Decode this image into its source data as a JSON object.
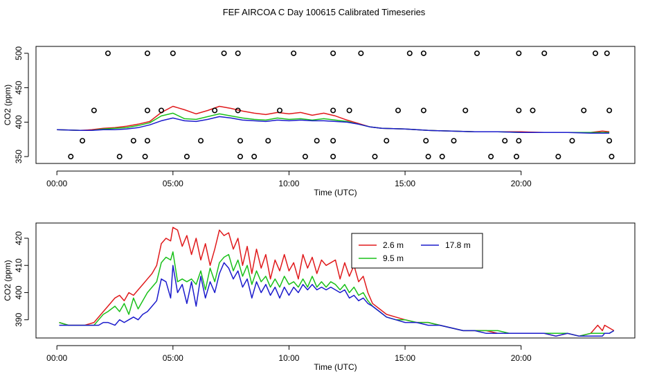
{
  "figure": {
    "title": "FEF AIRCOA C  Day 100615  Calibrated Timeseries"
  },
  "colors": {
    "red": "#e0191b",
    "green": "#19c019",
    "blue": "#1a1acc",
    "markers": "#000000"
  },
  "chart_data": [
    {
      "type": "line",
      "panel": "top",
      "title": "",
      "xlabel": "Time (UTC)",
      "ylabel": "CO2 (ppm)",
      "xlim": [
        -0.9,
        24.9
      ],
      "ylim": [
        340,
        510
      ],
      "xticks": [
        0,
        5,
        10,
        15,
        20
      ],
      "xtick_labels": [
        "00:00",
        "05:00",
        "10:00",
        "15:00",
        "20:00"
      ],
      "yticks": [
        350,
        400,
        450,
        500
      ],
      "ytick_labels": [
        "350",
        "400",
        "450",
        "500"
      ],
      "grid": false,
      "series": [
        {
          "name": "2.6 m",
          "color": "red",
          "x": [
            0,
            1,
            1.5,
            2,
            2.5,
            3,
            3.5,
            4,
            4.5,
            5,
            5.5,
            6,
            6.5,
            7,
            7.5,
            8,
            8.5,
            9,
            9.5,
            10,
            10.5,
            11,
            11.5,
            12,
            12.5,
            13,
            13.5,
            14,
            15,
            16,
            17,
            18,
            19,
            20,
            21,
            22,
            23,
            23.5,
            23.8
          ],
          "y": [
            389,
            388,
            389,
            391,
            392,
            394,
            397,
            401,
            414,
            423,
            418,
            412,
            417,
            423,
            420,
            416,
            413,
            411,
            414,
            412,
            414,
            410,
            413,
            409,
            403,
            398,
            393,
            391,
            390,
            388,
            387,
            386,
            386,
            386,
            385,
            385,
            385,
            387,
            386
          ]
        },
        {
          "name": "9.5 m",
          "color": "green",
          "x": [
            0,
            1,
            1.5,
            2,
            2.5,
            3,
            3.5,
            4,
            4.5,
            5,
            5.5,
            6,
            6.5,
            7,
            7.5,
            8,
            8.5,
            9,
            9.5,
            10,
            10.5,
            11,
            11.5,
            12,
            12.5,
            13,
            13.5,
            14,
            15,
            16,
            17,
            18,
            19,
            20,
            21,
            22,
            23,
            23.8
          ],
          "y": [
            389,
            388,
            388,
            390,
            391,
            392,
            395,
            399,
            409,
            413,
            405,
            404,
            408,
            412,
            409,
            406,
            404,
            403,
            406,
            404,
            405,
            403,
            405,
            403,
            401,
            397,
            393,
            391,
            390,
            388,
            387,
            386,
            386,
            385,
            385,
            385,
            385,
            385
          ]
        },
        {
          "name": "17.8 m",
          "color": "blue",
          "x": [
            0,
            1,
            1.5,
            2,
            2.5,
            3,
            3.5,
            4,
            4.5,
            5,
            5.5,
            6,
            6.5,
            7,
            7.5,
            8,
            8.5,
            9,
            9.5,
            10,
            10.5,
            11,
            11.5,
            12,
            12.5,
            13,
            13.5,
            14,
            15,
            16,
            17,
            18,
            19,
            20,
            21,
            22,
            23,
            23.8
          ],
          "y": [
            389,
            388,
            388,
            389,
            389,
            390,
            392,
            396,
            402,
            406,
            402,
            401,
            404,
            408,
            406,
            403,
            402,
            401,
            403,
            402,
            403,
            402,
            402,
            401,
            400,
            397,
            393,
            391,
            390,
            388,
            387,
            386,
            386,
            385,
            385,
            385,
            384,
            384
          ]
        },
        {
          "name": "markers",
          "color": "markers",
          "marker": "circle",
          "x": [
            2.2,
            3.9,
            5.0,
            7.2,
            7.8,
            10.2,
            11.9,
            13.1,
            15.2,
            15.8,
            18.1,
            19.9,
            21.0,
            23.2,
            23.7,
            1.6,
            3.9,
            4.5,
            6.8,
            7.8,
            9.6,
            11.9,
            12.6,
            14.7,
            15.8,
            17.6,
            19.9,
            20.5,
            22.7,
            23.8,
            1.1,
            3.3,
            3.9,
            6.2,
            7.9,
            9.1,
            11.2,
            11.9,
            14.2,
            15.9,
            17.1,
            19.3,
            19.9,
            22.2,
            23.8,
            0.6,
            2.7,
            3.8,
            5.6,
            7.9,
            8.5,
            10.7,
            11.9,
            13.7,
            16.0,
            16.6,
            18.7,
            19.8,
            21.6,
            23.9
          ],
          "y": [
            500,
            500,
            500,
            500,
            500,
            500,
            500,
            500,
            500,
            500,
            500,
            500,
            500,
            500,
            500,
            417,
            417,
            417,
            417,
            417,
            417,
            417,
            417,
            417,
            417,
            417,
            417,
            417,
            417,
            417,
            373,
            373,
            373,
            373,
            373,
            373,
            373,
            373,
            373,
            373,
            373,
            373,
            373,
            373,
            373,
            350,
            350,
            350,
            350,
            350,
            350,
            350,
            350,
            350,
            350,
            350,
            350,
            350,
            350,
            350
          ]
        }
      ]
    },
    {
      "type": "line",
      "panel": "bottom",
      "title": "",
      "xlabel": "Time (UTC)",
      "ylabel": "CO2 (ppm)",
      "xlim": [
        -0.9,
        24.9
      ],
      "ylim": [
        383.3,
        425.6
      ],
      "xticks": [
        0,
        5,
        10,
        15,
        20
      ],
      "xtick_labels": [
        "00:00",
        "05:00",
        "10:00",
        "15:00",
        "20:00"
      ],
      "yticks": [
        390,
        400,
        410,
        420
      ],
      "ytick_labels": [
        "390",
        "400",
        "410",
        "420"
      ],
      "grid": false,
      "legend": {
        "placement": "top-right",
        "entries": [
          "2.6 m",
          "17.8 m",
          "9.5 m"
        ]
      },
      "series": [
        {
          "name": "2.6 m",
          "color": "red",
          "x": [
            0.1,
            0.5,
            0.8,
            1.2,
            1.6,
            1.8,
            2.0,
            2.2,
            2.5,
            2.7,
            2.9,
            3.1,
            3.3,
            3.5,
            3.7,
            3.9,
            4.1,
            4.3,
            4.5,
            4.7,
            4.9,
            5.0,
            5.2,
            5.4,
            5.6,
            5.8,
            6.0,
            6.2,
            6.4,
            6.6,
            6.8,
            7.0,
            7.2,
            7.4,
            7.6,
            7.8,
            8.0,
            8.2,
            8.4,
            8.6,
            8.8,
            9.0,
            9.2,
            9.4,
            9.6,
            9.8,
            10.0,
            10.2,
            10.4,
            10.6,
            10.8,
            11.0,
            11.2,
            11.4,
            11.6,
            11.8,
            12.0,
            12.2,
            12.4,
            12.6,
            12.8,
            13.0,
            13.2,
            13.4,
            13.6,
            13.9,
            14.2,
            14.6,
            15.0,
            15.5,
            16.0,
            16.5,
            17.0,
            17.5,
            18.0,
            18.5,
            19.0,
            19.5,
            20.0,
            20.5,
            21.0,
            21.5,
            22.0,
            22.5,
            23.0,
            23.3,
            23.5,
            23.6,
            23.8,
            24.0
          ],
          "y": [
            389,
            388,
            388,
            388,
            389,
            391,
            393,
            395,
            398,
            399,
            397,
            400,
            399,
            401,
            403,
            405,
            407,
            410,
            418,
            420,
            419,
            424,
            423,
            417,
            421,
            414,
            420,
            412,
            418,
            410,
            416,
            423,
            421,
            422,
            416,
            420,
            410,
            417,
            407,
            416,
            409,
            414,
            405,
            412,
            408,
            414,
            408,
            411,
            405,
            414,
            409,
            413,
            407,
            412,
            410,
            411,
            412,
            405,
            411,
            406,
            410,
            404,
            406,
            400,
            396,
            394,
            392,
            391,
            390,
            389,
            389,
            388,
            387,
            386,
            386,
            386,
            385,
            385,
            385,
            385,
            385,
            384,
            385,
            384,
            385,
            388,
            386,
            388,
            387,
            386
          ]
        },
        {
          "name": "9.5 m",
          "color": "green",
          "x": [
            0.1,
            0.5,
            0.8,
            1.2,
            1.6,
            1.8,
            2.0,
            2.2,
            2.5,
            2.7,
            2.9,
            3.1,
            3.3,
            3.5,
            3.7,
            3.9,
            4.1,
            4.3,
            4.5,
            4.7,
            4.9,
            5.0,
            5.2,
            5.4,
            5.6,
            5.8,
            6.0,
            6.2,
            6.4,
            6.6,
            6.8,
            7.0,
            7.2,
            7.4,
            7.6,
            7.8,
            8.0,
            8.2,
            8.4,
            8.6,
            8.8,
            9.0,
            9.2,
            9.4,
            9.6,
            9.8,
            10.0,
            10.2,
            10.4,
            10.6,
            10.8,
            11.0,
            11.2,
            11.4,
            11.6,
            11.8,
            12.0,
            12.2,
            12.4,
            12.6,
            12.8,
            13.0,
            13.2,
            13.4,
            13.6,
            13.9,
            14.2,
            14.6,
            15.0,
            15.5,
            16.0,
            16.5,
            17.0,
            17.5,
            18.0,
            18.5,
            19.0,
            19.5,
            20.0,
            20.5,
            21.0,
            21.5,
            22.0,
            22.5,
            23.0,
            23.3,
            23.5,
            23.6,
            23.8,
            24.0
          ],
          "y": [
            389,
            388,
            388,
            388,
            388,
            390,
            392,
            393,
            395,
            393,
            396,
            392,
            398,
            394,
            397,
            400,
            402,
            404,
            411,
            413,
            412,
            415,
            404,
            405,
            404,
            405,
            403,
            408,
            401,
            409,
            404,
            411,
            413,
            414,
            408,
            412,
            406,
            410,
            403,
            408,
            404,
            406,
            402,
            405,
            402,
            406,
            403,
            404,
            402,
            405,
            402,
            406,
            402,
            404,
            402,
            404,
            403,
            401,
            403,
            400,
            402,
            399,
            400,
            397,
            395,
            393,
            391,
            390,
            390,
            389,
            389,
            388,
            387,
            386,
            386,
            386,
            386,
            385,
            385,
            385,
            385,
            385,
            385,
            384,
            385,
            385,
            385,
            385,
            385,
            386
          ]
        },
        {
          "name": "17.8 m",
          "color": "blue",
          "x": [
            0.1,
            0.5,
            0.8,
            1.2,
            1.6,
            1.8,
            2.0,
            2.2,
            2.5,
            2.7,
            2.9,
            3.1,
            3.3,
            3.5,
            3.7,
            3.9,
            4.1,
            4.3,
            4.5,
            4.7,
            4.9,
            5.0,
            5.2,
            5.4,
            5.6,
            5.8,
            6.0,
            6.2,
            6.4,
            6.6,
            6.8,
            7.0,
            7.2,
            7.4,
            7.6,
            7.8,
            8.0,
            8.2,
            8.4,
            8.6,
            8.8,
            9.0,
            9.2,
            9.4,
            9.6,
            9.8,
            10.0,
            10.2,
            10.4,
            10.6,
            10.8,
            11.0,
            11.2,
            11.4,
            11.6,
            11.8,
            12.0,
            12.2,
            12.4,
            12.6,
            12.8,
            13.0,
            13.2,
            13.4,
            13.6,
            13.9,
            14.2,
            14.6,
            15.0,
            15.5,
            16.0,
            16.5,
            17.0,
            17.5,
            18.0,
            18.5,
            19.0,
            19.5,
            20.0,
            20.5,
            21.0,
            21.5,
            22.0,
            22.5,
            23.0,
            23.3,
            23.5,
            23.6,
            23.8,
            24.0
          ],
          "y": [
            388,
            388,
            388,
            388,
            388,
            388,
            389,
            389,
            388,
            390,
            389,
            390,
            391,
            390,
            392,
            393,
            395,
            397,
            405,
            404,
            398,
            410,
            400,
            403,
            396,
            404,
            395,
            406,
            398,
            404,
            400,
            407,
            411,
            409,
            405,
            408,
            402,
            405,
            398,
            404,
            400,
            403,
            399,
            402,
            398,
            402,
            399,
            402,
            400,
            403,
            401,
            403,
            401,
            402,
            401,
            402,
            401,
            400,
            401,
            398,
            399,
            397,
            398,
            396,
            395,
            393,
            391,
            390,
            389,
            389,
            388,
            388,
            387,
            386,
            386,
            385,
            385,
            385,
            385,
            385,
            385,
            384,
            385,
            384,
            384,
            384,
            384,
            385,
            385,
            386
          ]
        }
      ]
    }
  ]
}
